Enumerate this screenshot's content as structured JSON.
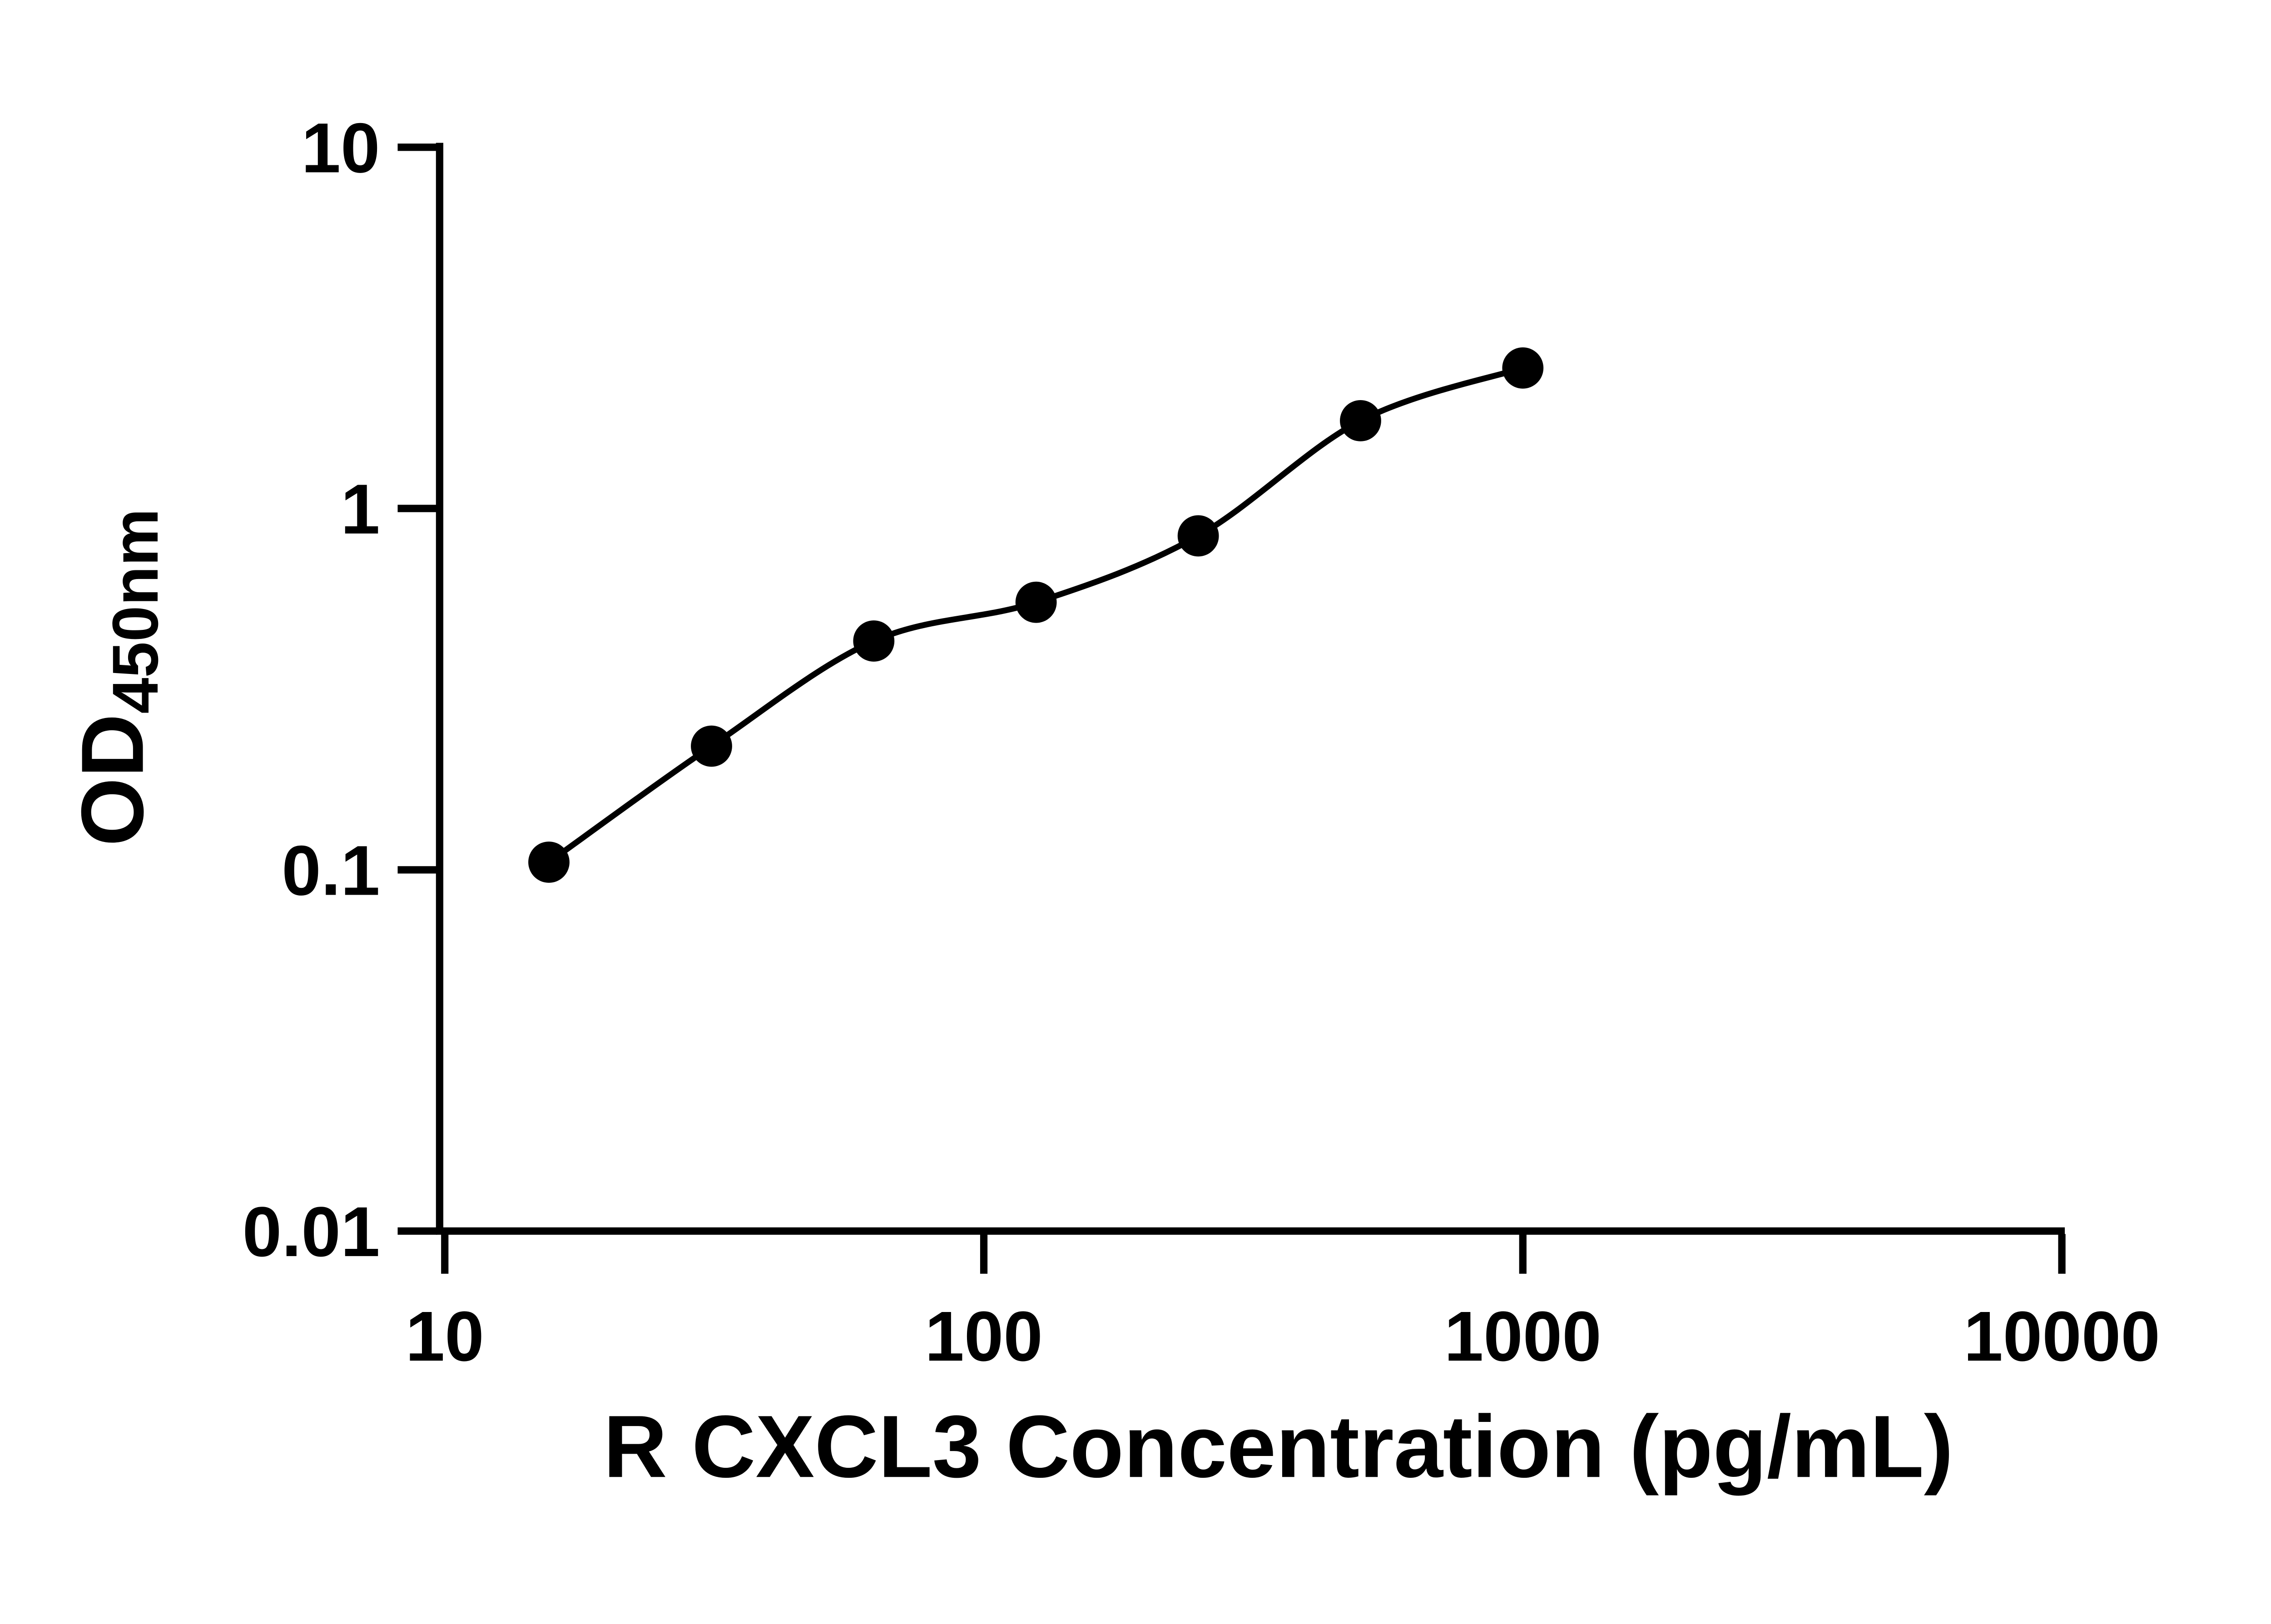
{
  "figure": {
    "background_color": "#ffffff",
    "axis_color": "#000000",
    "text_color": "#000000",
    "marker_color": "#000000",
    "curve_color": "#000000"
  },
  "chart_data": {
    "type": "scatter",
    "subtype": "elisa-standard-curve",
    "title": "",
    "xlabel": "R CXCL3 Concentration (pg/mL)",
    "ylabel_main": "OD",
    "ylabel_subscript": "450nm",
    "x_scale": "log10",
    "y_scale": "log10",
    "xlim": [
      10,
      10000
    ],
    "ylim": [
      0.01,
      10
    ],
    "x_ticks": [
      10,
      100,
      1000,
      10000
    ],
    "x_tick_labels": [
      "10",
      "100",
      "1000",
      "10000"
    ],
    "y_ticks": [
      0.01,
      0.1,
      1,
      10
    ],
    "y_tick_labels": [
      "0.01",
      "0.1",
      "1",
      "10"
    ],
    "grid": false,
    "legend": false,
    "series": [
      {
        "marker": "filled-circle",
        "fit": "smooth-curve",
        "points": [
          {
            "x": 15.6,
            "y": 0.105
          },
          {
            "x": 31.25,
            "y": 0.22
          },
          {
            "x": 62.5,
            "y": 0.43
          },
          {
            "x": 125,
            "y": 0.55
          },
          {
            "x": 250,
            "y": 0.84
          },
          {
            "x": 500,
            "y": 1.75
          },
          {
            "x": 1000,
            "y": 2.45
          }
        ]
      }
    ]
  }
}
